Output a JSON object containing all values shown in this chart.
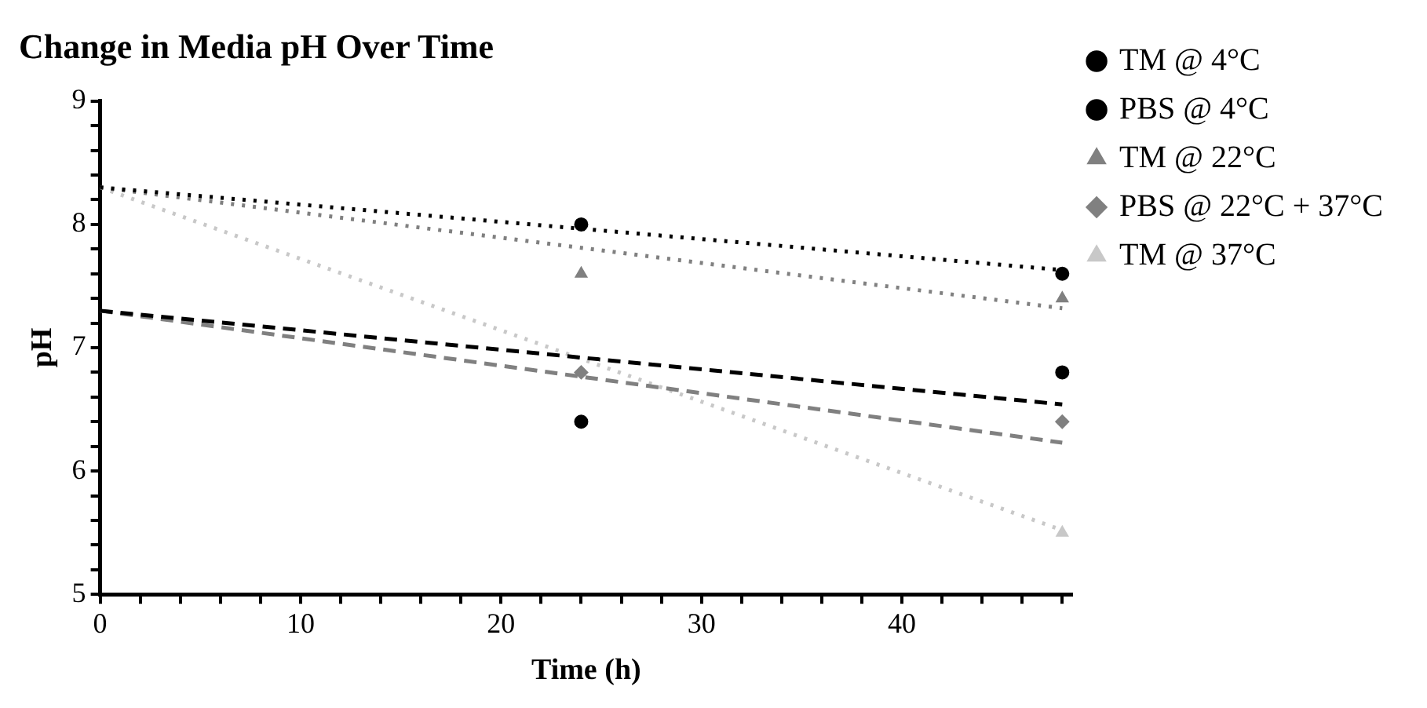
{
  "chart_data": {
    "type": "scatter",
    "title": "Change in Media pH Over Time",
    "xlabel": "Time (h)",
    "ylabel": "pH",
    "xlim": [
      0,
      48.5
    ],
    "xticks": [
      0,
      {
        "value": 2,
        "label": null
      },
      {
        "value": 4,
        "label": null
      },
      {
        "value": 6,
        "label": null
      },
      {
        "value": 8,
        "label": null
      },
      10,
      {
        "value": 12,
        "label": null
      },
      {
        "value": 14,
        "label": null
      },
      {
        "value": 16,
        "label": null
      },
      {
        "value": 18,
        "label": null
      },
      20,
      {
        "value": 22,
        "label": null
      },
      {
        "value": 24,
        "label": null
      },
      {
        "value": 26,
        "label": null
      },
      {
        "value": 28,
        "label": null
      },
      30,
      {
        "value": 32,
        "label": null
      },
      {
        "value": 34,
        "label": null
      },
      {
        "value": 36,
        "label": null
      },
      {
        "value": 38,
        "label": null
      },
      40,
      {
        "value": 42,
        "label": null
      },
      {
        "value": 44,
        "label": null
      },
      {
        "value": 46,
        "label": null
      },
      {
        "value": 48,
        "label": null
      }
    ],
    "ylim": [
      5,
      9
    ],
    "yticks": [
      5,
      {
        "value": 5.2,
        "label": null
      },
      {
        "value": 5.4,
        "label": null
      },
      {
        "value": 5.6,
        "label": null
      },
      {
        "value": 5.8,
        "label": null
      },
      6,
      {
        "value": 6.2,
        "label": null
      },
      {
        "value": 6.4,
        "label": null
      },
      {
        "value": 6.6,
        "label": null
      },
      {
        "value": 6.8,
        "label": null
      },
      7,
      {
        "value": 7.2,
        "label": null
      },
      {
        "value": 7.4,
        "label": null
      },
      {
        "value": 7.6,
        "label": null
      },
      {
        "value": 7.8,
        "label": null
      },
      8,
      {
        "value": 8.2,
        "label": null
      },
      {
        "value": 8.4,
        "label": null
      },
      {
        "value": 8.6,
        "label": null
      },
      {
        "value": 8.8,
        "label": null
      },
      9
    ],
    "grid": false,
    "legend": "right",
    "series": [
      {
        "name": "TM @ 4°C",
        "type": "scatter",
        "marker": "circle",
        "color": "#000000",
        "x": [
          24,
          48
        ],
        "values": [
          8.0,
          7.6
        ]
      },
      {
        "name": "PBS @ 4°C",
        "type": "scatter",
        "marker": "circle",
        "color": "#000000",
        "x": [
          24,
          48
        ],
        "values": [
          6.4,
          6.8
        ]
      },
      {
        "name": "TM @ 22°C",
        "type": "scatter",
        "marker": "triangle",
        "color": "#808080",
        "x": [
          24,
          48
        ],
        "values": [
          7.6,
          7.4
        ]
      },
      {
        "name": "PBS @ 22°C + 37°C",
        "type": "scatter",
        "marker": "diamond",
        "color": "#808080",
        "x": [
          24,
          48
        ],
        "values": [
          6.8,
          6.4
        ]
      },
      {
        "name": "TM @ 37°C",
        "type": "scatter",
        "marker": "triangle",
        "color": "#c8c8c8",
        "x": [
          48
        ],
        "values": [
          5.5
        ]
      },
      {
        "type": "line",
        "marker": "none",
        "line_style": "dotted",
        "color": "#000000",
        "x": [
          0,
          48
        ],
        "values": [
          8.3,
          7.63
        ]
      },
      {
        "type": "line",
        "marker": "none",
        "line_style": "dashed",
        "color": "#000000",
        "x": [
          0,
          48
        ],
        "values": [
          7.3,
          6.54
        ]
      },
      {
        "type": "line",
        "marker": "none",
        "line_style": "dotted",
        "color": "#808080",
        "x": [
          0,
          48
        ],
        "values": [
          8.3,
          7.32
        ]
      },
      {
        "type": "line",
        "marker": "none",
        "line_style": "dashed",
        "color": "#808080",
        "x": [
          0,
          48
        ],
        "values": [
          7.3,
          6.23
        ]
      },
      {
        "type": "line",
        "marker": "none",
        "line_style": "dotted",
        "color": "#c8c8c8",
        "x": [
          0,
          48
        ],
        "values": [
          8.3,
          5.52
        ]
      }
    ]
  }
}
